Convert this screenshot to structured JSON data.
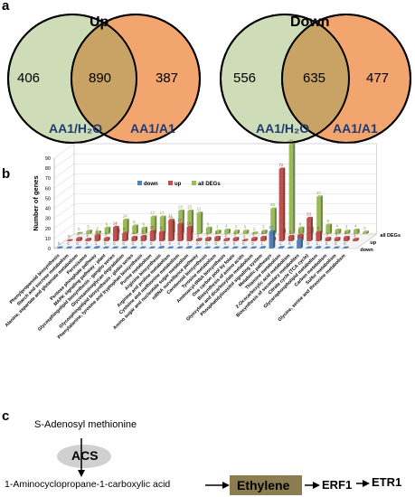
{
  "panels": {
    "a": {
      "letter": "a",
      "up": {
        "title": "Up",
        "left_only": "406",
        "overlap": "890",
        "right_only": "387",
        "left_label": "AA1/H₂O",
        "right_label": "AA1/A1"
      },
      "down": {
        "title": "Down",
        "left_only": "556",
        "overlap": "635",
        "right_only": "477",
        "left_label": "AA1/H₂O",
        "right_label": "AA1/A1"
      },
      "colors": {
        "left_circle": "#cfdcb8",
        "right_circle": "#f2a56f",
        "overlap": "#c9a365"
      }
    },
    "b": {
      "letter": "b",
      "colors": {
        "down": "#4f81bd",
        "up": "#c0504d",
        "all": "#9bbb59"
      }
    },
    "c": {
      "letter": "c",
      "substrate": "S-Adenosyl methionine",
      "enzyme": "ACS",
      "intermediate": "1-Aminocyclopropane-1-carboxylic acid",
      "product": "Ethylene",
      "step2": "ERF1",
      "step3": "ETR1",
      "colors": {
        "enzyme_fill": "#d0d0d0",
        "product_fill": "#8b7d4f"
      }
    }
  },
  "chart_data": {
    "type": "bar",
    "ylabel": "Number of genes",
    "ylim": [
      0,
      90
    ],
    "yticks": [
      0,
      10,
      20,
      30,
      40,
      50,
      60,
      70,
      80,
      90
    ],
    "legend": [
      "down",
      "up",
      "all DEGs"
    ],
    "legend_position": "top",
    "depth_labels": [
      "all DEGs",
      "up",
      "down"
    ],
    "categories": [
      "Phenylpropanoid biosynthesis",
      "Starch and sucrose metabolism",
      "Alanine, aspartate and glutamate metabolism",
      "Peroxisome",
      "Pentose phosphate pathway",
      "MAPK signaling pathway - plant",
      "Glycosphingolipid biosynthesis - ganglio series",
      "Glycosaminoglycan degradation",
      "Glycosphingolipid biosynthesis - globo series",
      "Phenylalanine, tyrosine and tryptophan biosynthesis",
      "Purine metabolism",
      "Arginine biosynthesis",
      "Arginine and proline metabolism",
      "Cysteine and methionine metabolism",
      "Amino sugar and nucleotide sugar metabolism",
      "mRNA surveillance pathway",
      "Carotenoid biosynthesis",
      "Tyrosine metabolism",
      "Aminoacyl-tRNA biosynthesis",
      "One carbon pool by folate",
      "Biosynthesis of amino acids",
      "Glyoxylate and dicarboxylate metabolism",
      "Phosphatidylinositol signaling system",
      "Metabolic pathways",
      "Thiamine metabolism",
      "2-Oxocarboxylic acid metabolism",
      "Biosynthesis of secondary metabolites",
      "Citrate cycle (TCA cycle)",
      "Glycerophospholipid metabolism",
      "Carbon metabolism",
      "Sulfur metabolism",
      "Glycine, serine and threonine metabolism"
    ],
    "series": [
      {
        "name": "down",
        "values": [
          0,
          0,
          0,
          0,
          1,
          0,
          0,
          0,
          0,
          0,
          0,
          1,
          0,
          0,
          1,
          0,
          0,
          0,
          0,
          0,
          0,
          0,
          1,
          17,
          1,
          0,
          8,
          0,
          1,
          0,
          0,
          0
        ]
      },
      {
        "name": "up",
        "values": [
          0,
          3,
          2,
          6,
          3,
          14,
          8,
          4,
          5,
          10,
          9,
          21,
          17,
          14,
          2,
          3,
          4,
          2,
          3,
          1,
          3,
          4,
          3,
          72,
          5,
          6,
          23,
          9,
          3,
          3,
          4,
          2
        ]
      },
      {
        "name": "all DEGs",
        "values": [
          0,
          3,
          2,
          6,
          4,
          14,
          8,
          6,
          17,
          17,
          12,
          23,
          23,
          21,
          6,
          3,
          4,
          3,
          3,
          1,
          3,
          25,
          4,
          89,
          6,
          6,
          37,
          9,
          4,
          3,
          4,
          2
        ]
      }
    ]
  }
}
